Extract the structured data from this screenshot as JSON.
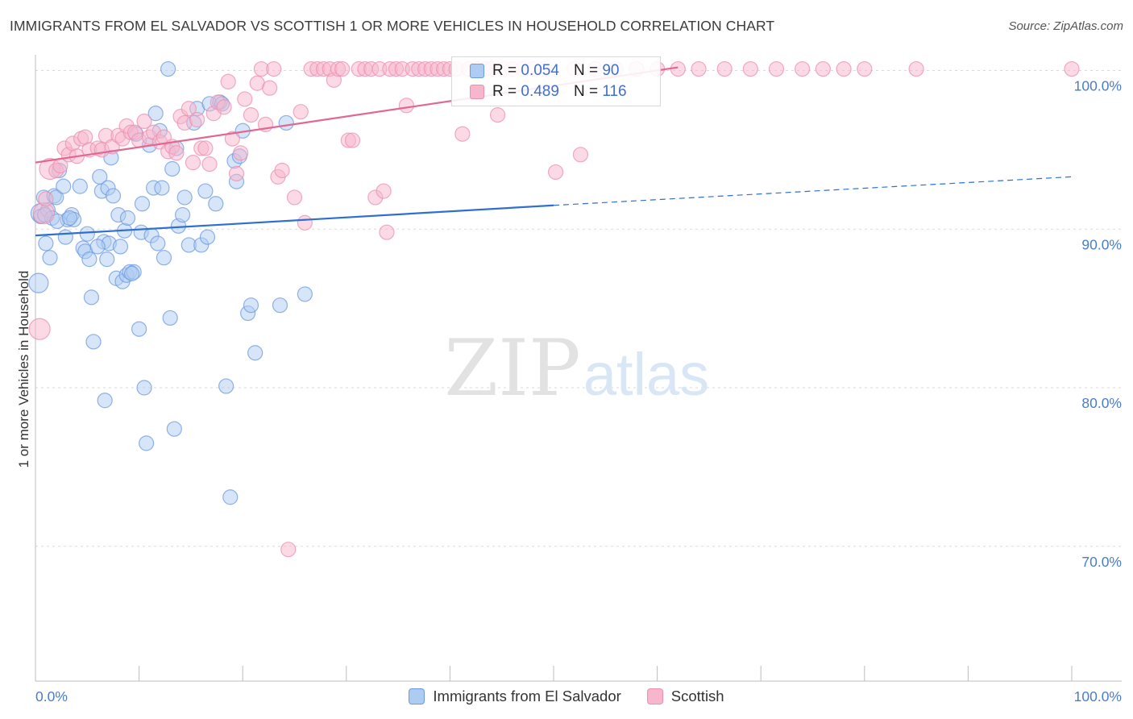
{
  "title": "IMMIGRANTS FROM EL SALVADOR VS SCOTTISH 1 OR MORE VEHICLES IN HOUSEHOLD CORRELATION CHART",
  "source": "Source: ZipAtlas.com",
  "watermark": {
    "zip": "ZIP",
    "atlas": "atlas"
  },
  "legend": {
    "r_label": "R =",
    "n_label": "N =",
    "rows": [
      {
        "name": "Immigrants from El Salvador",
        "r": "0.054",
        "n": "90",
        "fill": "#aecbf2",
        "stroke": "#6c9ae0"
      },
      {
        "name": "Scottish",
        "r": "0.489",
        "n": "116",
        "fill": "#f7b6cb",
        "stroke": "#ec8fb0"
      }
    ]
  },
  "chart_data": {
    "type": "scatter",
    "title": "IMMIGRANTS FROM EL SALVADOR VS SCOTTISH 1 OR MORE VEHICLES IN HOUSEHOLD CORRELATION CHART",
    "xlabel": "",
    "ylabel": "1 or more Vehicles in Household",
    "xlim": [
      0,
      100
    ],
    "ylim": [
      61.5,
      101.5
    ],
    "x_tick_labels": [
      "0.0%",
      "100.0%"
    ],
    "y_ticks": [
      100,
      90,
      80,
      70
    ],
    "y_tick_labels": [
      "100.0%",
      "90.0%",
      "80.0%",
      "70.0%"
    ],
    "grid": true,
    "series": [
      {
        "name": "Immigrants from El Salvador",
        "color": "#6c9ae0",
        "fill": "#aecbf2",
        "trend": {
          "x0": 0,
          "y0": 89.6,
          "x1": 50,
          "y1": 91.5,
          "dashed_to_x": 100,
          "dashed_to_y": 93.3,
          "color": "#2f6fd0"
        },
        "points": [
          [
            0.3,
            86.6,
            12
          ],
          [
            0.5,
            91.0,
            12
          ],
          [
            0.5,
            90.8,
            9
          ],
          [
            0.8,
            92.0,
            9
          ],
          [
            1.0,
            89.1,
            9
          ],
          [
            1.2,
            91.2,
            9
          ],
          [
            1.4,
            88.2,
            9
          ],
          [
            1.6,
            90.7,
            9
          ],
          [
            1.8,
            92.1,
            9
          ],
          [
            2.0,
            92.0,
            9
          ],
          [
            2.3,
            93.7,
            9
          ],
          [
            2.7,
            92.7,
            9
          ],
          [
            2.9,
            89.5,
            9
          ],
          [
            3.1,
            90.6,
            9
          ],
          [
            3.5,
            90.9,
            9
          ],
          [
            3.7,
            90.6,
            9
          ],
          [
            4.3,
            92.7,
            9
          ],
          [
            4.6,
            88.8,
            9
          ],
          [
            4.8,
            88.6,
            9
          ],
          [
            5.0,
            89.7,
            9
          ],
          [
            5.2,
            88.1,
            9
          ],
          [
            5.4,
            85.7,
            9
          ],
          [
            5.6,
            82.9,
            9
          ],
          [
            6.2,
            93.3,
            9
          ],
          [
            6.4,
            92.4,
            9
          ],
          [
            6.6,
            89.2,
            9
          ],
          [
            6.7,
            79.2,
            9
          ],
          [
            6.9,
            88.1,
            9
          ],
          [
            7.0,
            92.6,
            9
          ],
          [
            7.1,
            89.1,
            9
          ],
          [
            7.3,
            94.5,
            9
          ],
          [
            7.5,
            92.1,
            9
          ],
          [
            7.8,
            86.9,
            9
          ],
          [
            8.0,
            90.9,
            9
          ],
          [
            8.2,
            88.9,
            9
          ],
          [
            8.4,
            86.7,
            9
          ],
          [
            8.6,
            89.9,
            9
          ],
          [
            8.8,
            87.1,
            9
          ],
          [
            8.9,
            90.7,
            9
          ],
          [
            9.1,
            87.3,
            9
          ],
          [
            9.5,
            87.3,
            9
          ],
          [
            9.7,
            96.0,
            9
          ],
          [
            10.0,
            83.7,
            9
          ],
          [
            10.2,
            89.8,
            9
          ],
          [
            10.3,
            91.6,
            9
          ],
          [
            10.5,
            80.0,
            9
          ],
          [
            10.7,
            76.5,
            9
          ],
          [
            11.0,
            95.3,
            9
          ],
          [
            11.2,
            89.6,
            9
          ],
          [
            11.4,
            92.6,
            9
          ],
          [
            11.6,
            97.3,
            9
          ],
          [
            11.8,
            89.1,
            9
          ],
          [
            12.0,
            96.2,
            9
          ],
          [
            12.2,
            92.6,
            9
          ],
          [
            12.4,
            88.2,
            9
          ],
          [
            12.8,
            100.1,
            9
          ],
          [
            13.0,
            84.4,
            9
          ],
          [
            13.2,
            93.8,
            9
          ],
          [
            13.4,
            77.4,
            9
          ],
          [
            13.6,
            95.1,
            9
          ],
          [
            13.8,
            90.2,
            9
          ],
          [
            14.2,
            90.9,
            9
          ],
          [
            14.4,
            92.0,
            9
          ],
          [
            14.8,
            89.0,
            9
          ],
          [
            15.3,
            96.7,
            9
          ],
          [
            15.6,
            97.6,
            9
          ],
          [
            16.0,
            89.0,
            9
          ],
          [
            16.4,
            92.4,
            9
          ],
          [
            16.6,
            89.5,
            9
          ],
          [
            16.8,
            97.9,
            9
          ],
          [
            17.4,
            91.6,
            9
          ],
          [
            17.8,
            98.0,
            9
          ],
          [
            18.0,
            97.9,
            9
          ],
          [
            18.4,
            80.1,
            9
          ],
          [
            18.8,
            73.1,
            9
          ],
          [
            19.2,
            94.3,
            9
          ],
          [
            19.4,
            93.0,
            9
          ],
          [
            19.7,
            94.6,
            9
          ],
          [
            20.0,
            96.2,
            9
          ],
          [
            20.5,
            84.7,
            9
          ],
          [
            20.8,
            85.2,
            9
          ],
          [
            21.2,
            82.2,
            9
          ],
          [
            24.2,
            96.7,
            9
          ],
          [
            23.6,
            85.2,
            9
          ],
          [
            26.0,
            85.9,
            9
          ],
          [
            0.9,
            90.9,
            9
          ],
          [
            2.1,
            90.5,
            9
          ],
          [
            3.3,
            90.7,
            9
          ],
          [
            6.0,
            88.9,
            9
          ],
          [
            9.3,
            87.2,
            9
          ]
        ]
      },
      {
        "name": "Scottish",
        "color": "#ec8fb0",
        "fill": "#f7b6cb",
        "trend": {
          "x0": 0,
          "y0": 94.2,
          "x1": 62,
          "y1": 100.2,
          "color": "#e06891"
        },
        "points": [
          [
            0.4,
            83.7,
            13
          ],
          [
            0.8,
            91.0,
            13
          ],
          [
            1.0,
            91.9,
            9
          ],
          [
            1.4,
            93.8,
            13
          ],
          [
            2.0,
            93.7,
            9
          ],
          [
            2.4,
            94.0,
            9
          ],
          [
            2.8,
            95.1,
            9
          ],
          [
            3.2,
            94.7,
            9
          ],
          [
            3.6,
            95.4,
            9
          ],
          [
            4.0,
            94.6,
            9
          ],
          [
            4.4,
            95.7,
            9
          ],
          [
            4.8,
            95.8,
            9
          ],
          [
            5.2,
            95.0,
            9
          ],
          [
            6.0,
            95.1,
            9
          ],
          [
            6.4,
            95.0,
            9
          ],
          [
            6.8,
            95.9,
            9
          ],
          [
            7.4,
            95.2,
            9
          ],
          [
            8.0,
            95.9,
            9
          ],
          [
            8.4,
            95.7,
            9
          ],
          [
            8.8,
            96.5,
            9
          ],
          [
            9.2,
            96.1,
            9
          ],
          [
            9.6,
            96.1,
            9
          ],
          [
            10.0,
            95.6,
            9
          ],
          [
            10.5,
            96.8,
            9
          ],
          [
            11.0,
            95.8,
            9
          ],
          [
            11.4,
            96.1,
            9
          ],
          [
            12.0,
            95.5,
            9
          ],
          [
            12.4,
            95.8,
            9
          ],
          [
            12.8,
            94.9,
            9
          ],
          [
            13.2,
            95.2,
            9
          ],
          [
            13.6,
            94.8,
            9
          ],
          [
            14.0,
            97.1,
            9
          ],
          [
            14.4,
            96.7,
            9
          ],
          [
            14.8,
            97.6,
            9
          ],
          [
            15.2,
            94.2,
            9
          ],
          [
            15.6,
            96.9,
            9
          ],
          [
            16.0,
            95.1,
            9
          ],
          [
            16.4,
            95.1,
            9
          ],
          [
            16.8,
            94.1,
            9
          ],
          [
            17.2,
            97.3,
            9
          ],
          [
            17.6,
            98.0,
            9
          ],
          [
            18.2,
            97.7,
            9
          ],
          [
            18.6,
            99.3,
            9
          ],
          [
            19.0,
            95.7,
            9
          ],
          [
            19.4,
            93.5,
            9
          ],
          [
            19.8,
            94.8,
            9
          ],
          [
            20.2,
            98.2,
            9
          ],
          [
            20.8,
            97.2,
            9
          ],
          [
            21.4,
            99.2,
            9
          ],
          [
            21.8,
            100.1,
            9
          ],
          [
            22.2,
            96.6,
            9
          ],
          [
            22.6,
            98.9,
            9
          ],
          [
            23.0,
            100.1,
            9
          ],
          [
            23.4,
            93.3,
            9
          ],
          [
            23.8,
            93.7,
            9
          ],
          [
            24.4,
            69.8,
            9
          ],
          [
            25.0,
            92.0,
            9
          ],
          [
            25.6,
            97.4,
            9
          ],
          [
            26.0,
            90.4,
            9
          ],
          [
            26.6,
            100.1,
            9
          ],
          [
            27.2,
            100.1,
            9
          ],
          [
            27.8,
            100.1,
            9
          ],
          [
            28.4,
            100.1,
            9
          ],
          [
            28.8,
            99.4,
            9
          ],
          [
            29.2,
            100.1,
            9
          ],
          [
            29.6,
            100.1,
            9
          ],
          [
            30.2,
            95.6,
            9
          ],
          [
            30.6,
            95.6,
            9
          ],
          [
            31.2,
            100.1,
            9
          ],
          [
            31.8,
            100.1,
            9
          ],
          [
            32.4,
            100.1,
            9
          ],
          [
            32.8,
            92.0,
            9
          ],
          [
            33.2,
            100.1,
            9
          ],
          [
            33.6,
            92.4,
            9
          ],
          [
            33.9,
            89.8,
            9
          ],
          [
            34.2,
            100.1,
            9
          ],
          [
            34.8,
            100.1,
            9
          ],
          [
            35.4,
            100.1,
            9
          ],
          [
            35.8,
            97.8,
            9
          ],
          [
            36.4,
            100.1,
            9
          ],
          [
            37.0,
            100.1,
            9
          ],
          [
            37.6,
            100.1,
            9
          ],
          [
            38.2,
            100.1,
            9
          ],
          [
            38.8,
            100.1,
            9
          ],
          [
            39.4,
            100.1,
            9
          ],
          [
            40.0,
            100.1,
            9
          ],
          [
            40.6,
            100.1,
            9
          ],
          [
            41.2,
            96.0,
            9
          ],
          [
            41.8,
            100.1,
            9
          ],
          [
            42.6,
            100.1,
            9
          ],
          [
            43.4,
            100.1,
            9
          ],
          [
            44.0,
            100.1,
            9
          ],
          [
            44.6,
            97.2,
            9
          ],
          [
            45.2,
            100.1,
            9
          ],
          [
            46.0,
            100.1,
            9
          ],
          [
            47.0,
            100.1,
            9
          ],
          [
            48.0,
            100.1,
            9
          ],
          [
            49.0,
            100.1,
            9
          ],
          [
            50.2,
            93.6,
            9
          ],
          [
            52.0,
            100.1,
            9
          ],
          [
            52.6,
            94.7,
            9
          ],
          [
            54.0,
            100.1,
            9
          ],
          [
            56.0,
            100.1,
            9
          ],
          [
            58.0,
            100.1,
            9
          ],
          [
            60.0,
            100.1,
            9
          ],
          [
            62.0,
            100.1,
            9
          ],
          [
            64.0,
            100.1,
            9
          ],
          [
            66.5,
            100.1,
            9
          ],
          [
            69.0,
            100.1,
            9
          ],
          [
            71.5,
            100.1,
            9
          ],
          [
            74.0,
            100.1,
            9
          ],
          [
            76.0,
            100.1,
            9
          ],
          [
            78.0,
            100.1,
            9
          ],
          [
            80.0,
            100.1,
            9
          ],
          [
            85.0,
            100.1,
            9
          ],
          [
            100.0,
            100.1,
            9
          ]
        ]
      }
    ]
  },
  "bottom_legend": [
    "Immigrants from El Salvador",
    "Scottish"
  ]
}
